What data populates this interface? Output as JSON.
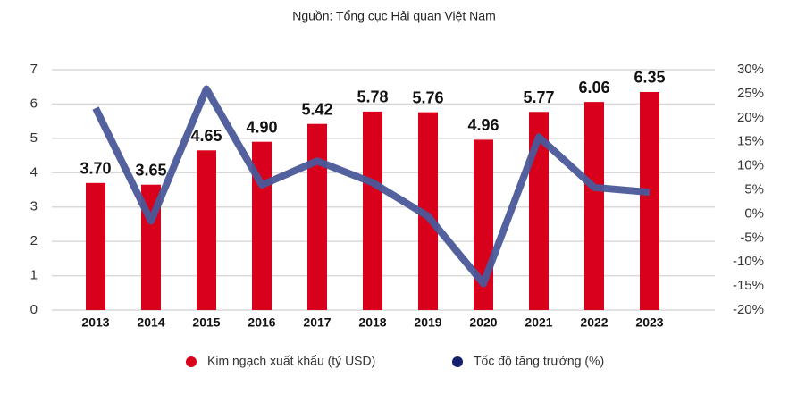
{
  "chart_data": {
    "type": "bar_line",
    "title": "Nguồn: Tổng cục Hải quan Việt Nam",
    "categories": [
      "2013",
      "2014",
      "2015",
      "2016",
      "2017",
      "2018",
      "2019",
      "2020",
      "2021",
      "2022",
      "2023"
    ],
    "series": [
      {
        "name": "Kim ngạch xuất khẩu (tỷ USD)",
        "type": "bar",
        "color": "#d9001b",
        "values": [
          3.7,
          3.65,
          4.65,
          4.9,
          5.42,
          5.78,
          5.76,
          4.96,
          5.77,
          6.06,
          6.35
        ],
        "value_labels": [
          "3.70",
          "3.65",
          "4.65",
          "4.90",
          "5.42",
          "5.78",
          "5.76",
          "4.96",
          "5.77",
          "6.06",
          "6.35"
        ]
      },
      {
        "name": "Tốc độ tăng trưởng (%)",
        "type": "line",
        "axis": "y2",
        "color": "#4a5899",
        "legend_color": "#15206b",
        "values": [
          22,
          -1.5,
          26,
          6,
          11,
          6.5,
          -0.5,
          -14.5,
          16,
          5.5,
          4.5
        ]
      }
    ],
    "ylim": [
      0,
      7
    ],
    "yticks": [
      0,
      1,
      2,
      3,
      4,
      5,
      6,
      7
    ],
    "y2lim": [
      -20,
      30
    ],
    "y2ticks": [
      {
        "value": -20,
        "label": "-20%"
      },
      {
        "value": -15,
        "label": "-15%"
      },
      {
        "value": -10,
        "label": "-10%"
      },
      {
        "value": -5,
        "label": "-5%"
      },
      {
        "value": 0,
        "label": "0%"
      },
      {
        "value": 5,
        "label": "5%"
      },
      {
        "value": 10,
        "label": "10%"
      },
      {
        "value": 15,
        "label": "15%"
      },
      {
        "value": 20,
        "label": "20%"
      },
      {
        "value": 25,
        "label": "25%"
      },
      {
        "value": 30,
        "label": "30%"
      }
    ],
    "grid": true,
    "legend": "bottom"
  }
}
